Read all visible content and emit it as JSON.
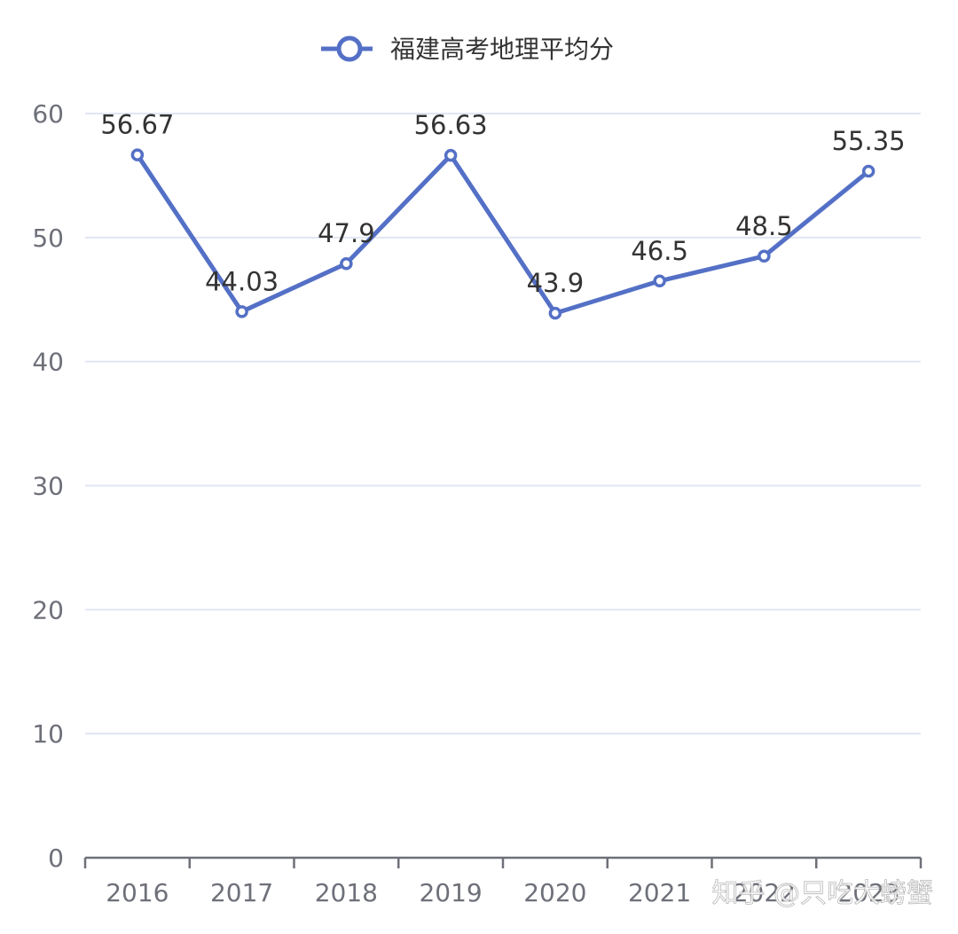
{
  "chart_data": {
    "type": "line",
    "title": "",
    "xlabel": "",
    "ylabel": "",
    "categories": [
      "2016",
      "2017",
      "2018",
      "2019",
      "2020",
      "2021",
      "2022",
      "2023"
    ],
    "series": [
      {
        "name": "福建高考地理平均分",
        "values": [
          56.67,
          44.03,
          47.9,
          56.63,
          43.9,
          46.5,
          48.5,
          55.35
        ],
        "color": "#5470c6"
      }
    ],
    "data_labels": [
      "56.67",
      "44.03",
      "47.9",
      "56.63",
      "43.9",
      "46.5",
      "48.5",
      "55.35"
    ],
    "ylim": [
      0,
      60
    ],
    "yticks": [
      0,
      10,
      20,
      30,
      40,
      50,
      60
    ],
    "grid": true,
    "legend_position": "top-center"
  },
  "watermark": "知乎 @只吃大螃蟹",
  "colors": {
    "series": "#5470c6",
    "grid": "#e0e6f1",
    "axis": "#6e7079",
    "label": "#333333"
  }
}
